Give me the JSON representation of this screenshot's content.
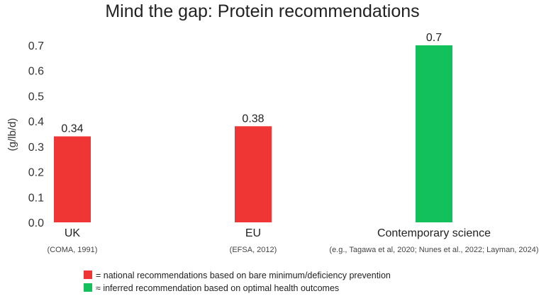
{
  "chart_data": {
    "type": "bar",
    "title": "Mind the gap: Protein recommendations",
    "ylabel": "(g/lb/d)",
    "xlabel": "",
    "ylim": [
      0,
      0.7
    ],
    "yticks": [
      "0.0",
      "0.1",
      "0.2",
      "0.3",
      "0.4",
      "0.5",
      "0.6",
      "0.7"
    ],
    "grid": false,
    "legend_position": "bottom",
    "categories": [
      "UK",
      "EU",
      "Contemporary science"
    ],
    "sources": [
      "(COMA, 1991)",
      "(EFSA, 2012)",
      "(e.g., Tagawa et al, 2020; Nunes et al., 2022; Layman, 2024)"
    ],
    "values": [
      0.34,
      0.38,
      0.7
    ],
    "data_labels": [
      "0.34",
      "0.38",
      "0.7"
    ],
    "bar_colors": [
      "#f03535",
      "#f03535",
      "#12c05c"
    ],
    "legend": [
      {
        "label": "= national recommendations based on bare minimum/deficiency prevention",
        "color": "#f03535"
      },
      {
        "label": "≈ inferred recommendation based on optimal health outcomes",
        "color": "#12c05c"
      }
    ]
  }
}
